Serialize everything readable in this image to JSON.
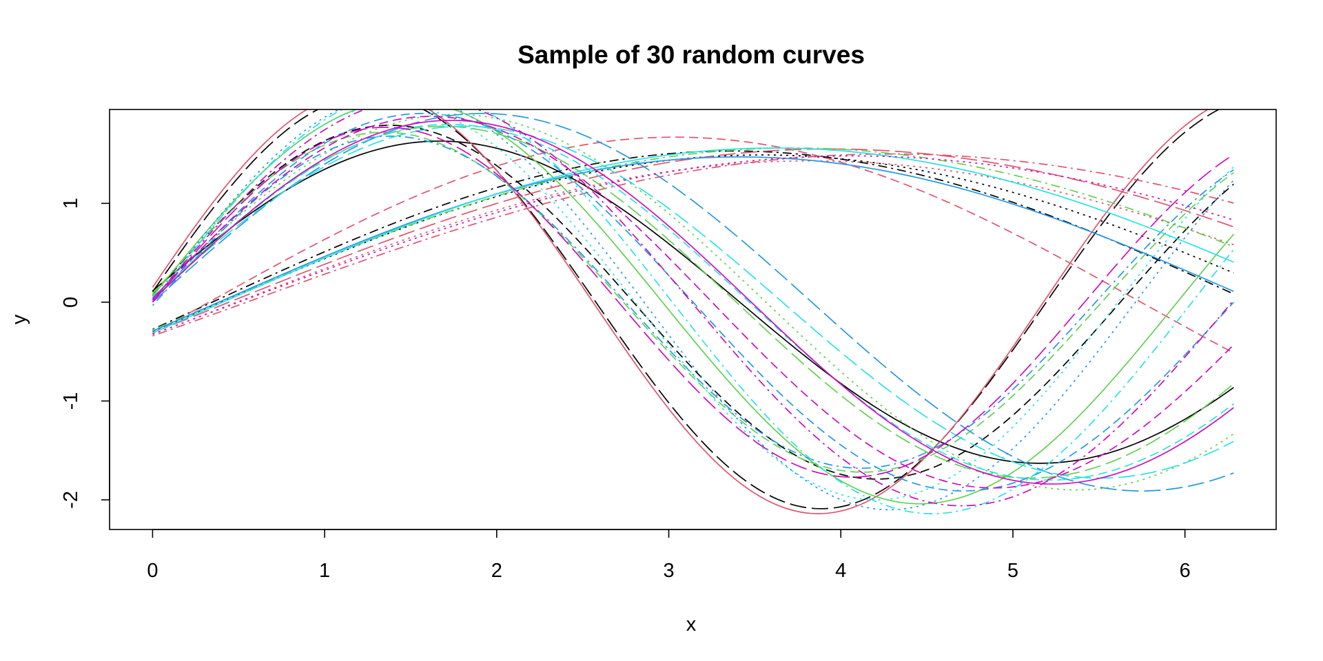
{
  "chart_data": {
    "type": "line",
    "title": "Sample of 30 random curves",
    "xlabel": "x",
    "ylabel": "y",
    "xlim": [
      -0.25,
      6.53
    ],
    "ylim": [
      -2.3,
      1.95
    ],
    "x_ticks": [
      0,
      1,
      2,
      3,
      4,
      5,
      6
    ],
    "y_ticks": [
      -2,
      -1,
      0,
      1
    ],
    "x_range": [
      0,
      6.283
    ],
    "grid": false,
    "legend": "none",
    "line_types": {
      "solid": "",
      "dashed": "13 7",
      "dotted": "3 6",
      "dotdash": "3 6 13 6",
      "longdash": "24 8",
      "twodash": "7 5 16 5"
    },
    "series": [
      {
        "color": "#000000",
        "line_type": "solid",
        "amplitude": 1.63,
        "frequency": 0.9,
        "phase": 0.07,
        "offset": 0
      },
      {
        "color": "#000000",
        "line_type": "dashed",
        "amplitude": 1.79,
        "frequency": 1.11,
        "phase": 0.04,
        "offset": 0
      },
      {
        "color": "#000000",
        "line_type": "dotted",
        "amplitude": 1.49,
        "frequency": 0.5,
        "phase": -0.2,
        "offset": 0
      },
      {
        "color": "#000000",
        "line_type": "dotdash",
        "amplitude": 1.53,
        "frequency": 0.52,
        "phase": -0.18,
        "offset": 0
      },
      {
        "color": "#000000",
        "line_type": "longdash",
        "amplitude": 2.09,
        "frequency": 1.2,
        "phase": 0.05,
        "offset": 0
      },
      {
        "color": "#df536b",
        "line_type": "solid",
        "amplitude": 2.14,
        "frequency": 1.2,
        "phase": 0.07,
        "offset": 0
      },
      {
        "color": "#df536b",
        "line_type": "dashed",
        "amplitude": 1.67,
        "frequency": 0.58,
        "phase": -0.19,
        "offset": 0
      },
      {
        "color": "#df536b",
        "line_type": "dotted",
        "amplitude": 1.43,
        "frequency": 0.47,
        "phase": -0.23,
        "offset": 0
      },
      {
        "color": "#df536b",
        "line_type": "dotdash",
        "amplitude": 1.5,
        "frequency": 0.42,
        "phase": -0.23,
        "offset": 0
      },
      {
        "color": "#df536b",
        "line_type": "longdash",
        "amplitude": 1.55,
        "frequency": 0.45,
        "phase": -0.2,
        "offset": 0
      },
      {
        "color": "#61d04f",
        "line_type": "solid",
        "amplitude": 2.04,
        "frequency": 1.05,
        "phase": 0.03,
        "offset": 0
      },
      {
        "color": "#61d04f",
        "line_type": "dashed",
        "amplitude": 1.72,
        "frequency": 1.13,
        "phase": 0.05,
        "offset": 0
      },
      {
        "color": "#61d04f",
        "line_type": "dotted",
        "amplitude": 1.9,
        "frequency": 0.87,
        "phase": 0.04,
        "offset": 0
      },
      {
        "color": "#61d04f",
        "line_type": "dotdash",
        "amplitude": 1.56,
        "frequency": 0.47,
        "phase": -0.18,
        "offset": 0
      },
      {
        "color": "#61d04f",
        "line_type": "longdash",
        "amplitude": 1.78,
        "frequency": 0.92,
        "phase": 0.02,
        "offset": 0
      },
      {
        "color": "#2297e6",
        "line_type": "solid",
        "amplitude": 1.47,
        "frequency": 0.52,
        "phase": -0.2,
        "offset": 0
      },
      {
        "color": "#2297e6",
        "line_type": "dashed",
        "amplitude": 1.91,
        "frequency": 1.0,
        "phase": 0.0,
        "offset": 0
      },
      {
        "color": "#2297e6",
        "line_type": "dotted",
        "amplitude": 2.1,
        "frequency": 1.1,
        "phase": 0.0,
        "offset": 0
      },
      {
        "color": "#2297e6",
        "line_type": "dotdash",
        "amplitude": 1.68,
        "frequency": 1.15,
        "phase": -0.02,
        "offset": 0
      },
      {
        "color": "#2297e6",
        "line_type": "longdash",
        "amplitude": 1.91,
        "frequency": 0.82,
        "phase": 0.0,
        "offset": 0
      },
      {
        "color": "#28e2e5",
        "line_type": "solid",
        "amplitude": 1.56,
        "frequency": 0.49,
        "phase": -0.2,
        "offset": 0
      },
      {
        "color": "#28e2e5",
        "line_type": "dashed",
        "amplitude": 1.8,
        "frequency": 0.9,
        "phase": 0.02,
        "offset": 0
      },
      {
        "color": "#28e2e5",
        "line_type": "dotted",
        "amplitude": 2.0,
        "frequency": 1.12,
        "phase": 0.0,
        "offset": 0
      },
      {
        "color": "#28e2e5",
        "line_type": "dotdash",
        "amplitude": 2.14,
        "frequency": 1.04,
        "phase": 0.0,
        "offset": 0
      },
      {
        "color": "#28e2e5",
        "line_type": "longdash",
        "amplitude": 1.78,
        "frequency": 0.85,
        "phase": 0.03,
        "offset": 0
      },
      {
        "color": "#cd0bbc",
        "line_type": "solid",
        "amplitude": 1.84,
        "frequency": 0.9,
        "phase": 0.01,
        "offset": 0
      },
      {
        "color": "#cd0bbc",
        "line_type": "dashed",
        "amplitude": 1.88,
        "frequency": 0.96,
        "phase": 0.02,
        "offset": 0
      },
      {
        "color": "#cd0bbc",
        "line_type": "dotted",
        "amplitude": 1.48,
        "frequency": 0.44,
        "phase": -0.22,
        "offset": 0
      },
      {
        "color": "#cd0bbc",
        "line_type": "dotdash",
        "amplitude": 2.06,
        "frequency": 1.0,
        "phase": 0.01,
        "offset": 0
      },
      {
        "color": "#cd0bbc",
        "line_type": "longdash",
        "amplitude": 1.77,
        "frequency": 1.16,
        "phase": 0.0,
        "offset": 0
      }
    ]
  }
}
